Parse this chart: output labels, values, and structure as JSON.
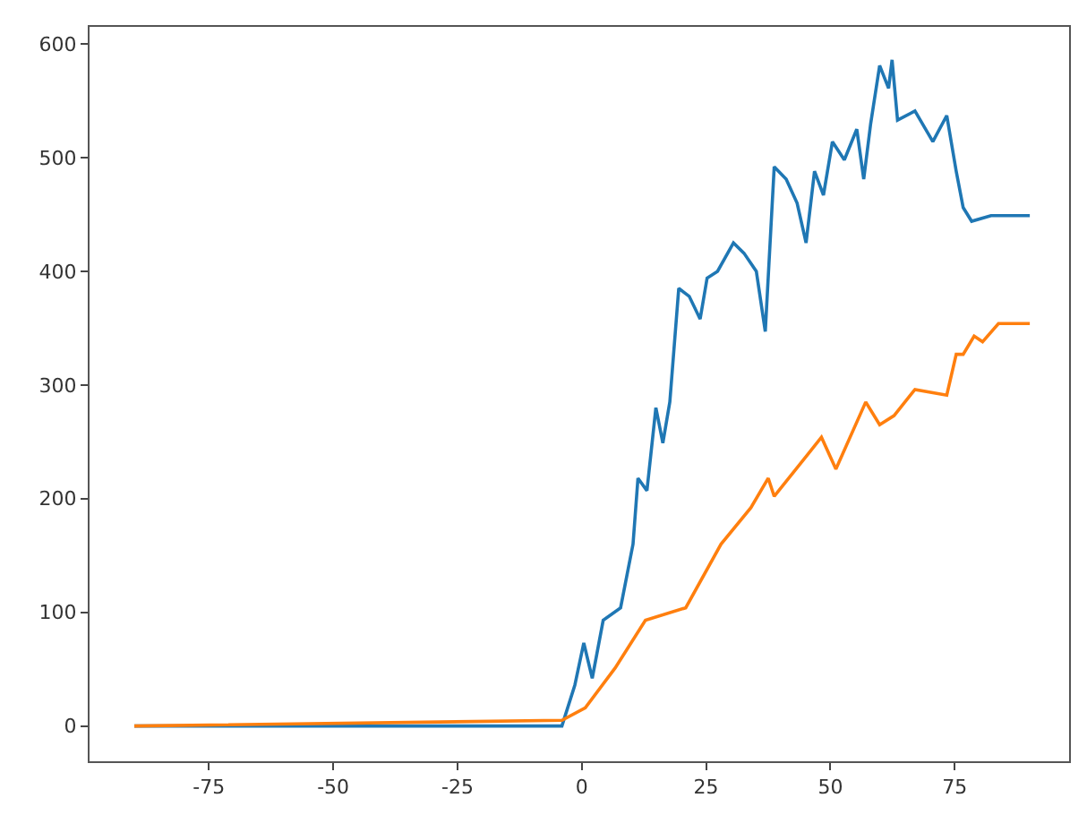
{
  "chart_data": {
    "type": "line",
    "xlim": [
      -99,
      98
    ],
    "ylim": [
      -31,
      615
    ],
    "xticks": [
      -75,
      -50,
      -25,
      0,
      25,
      50,
      75
    ],
    "yticks": [
      0,
      100,
      200,
      300,
      400,
      500,
      600
    ],
    "marker": "none",
    "line_style": "solid",
    "series": [
      {
        "color": "#1f77b4",
        "x": [
          -90,
          -4,
          -1.4,
          0.4,
          2.1,
          4.3,
          7.8,
          10.3,
          11.3,
          13.1,
          14.9,
          16.3,
          17.7,
          19.5,
          21.6,
          23.8,
          25.2,
          27.3,
          30.5,
          32.6,
          35.1,
          36.9,
          38.7,
          41.1,
          43.3,
          45.1,
          46.8,
          48.6,
          50.4,
          52.8,
          55.3,
          56.7,
          58.1,
          59.9,
          61.7,
          62.4,
          63.5,
          67.0,
          70.6,
          73.4,
          75.3,
          76.7,
          78.4,
          82.3,
          90.1
        ],
        "values": [
          0,
          0,
          36,
          73,
          42,
          93,
          104,
          160,
          218,
          207,
          280,
          249,
          285,
          385,
          378,
          358,
          394,
          400,
          425,
          416,
          400,
          347,
          492,
          481,
          460,
          425,
          488,
          467,
          514,
          498,
          525,
          481,
          530,
          581,
          561,
          586,
          533,
          541,
          514,
          537,
          488,
          456,
          444,
          449,
          449
        ]
      },
      {
        "color": "#ff7f0e",
        "x": [
          -90,
          -4,
          0.7,
          6.7,
          12.8,
          20.9,
          28,
          34,
          37.5,
          38.7,
          48.2,
          51.1,
          57.1,
          59.9,
          62.8,
          67,
          73.4,
          75.3,
          76.7,
          78.9,
          80.6,
          83.8,
          90.1
        ],
        "values": [
          0,
          5,
          16,
          51,
          93,
          104,
          160,
          192,
          218,
          202,
          254,
          226,
          285,
          265,
          273,
          296,
          291,
          327,
          327,
          343,
          338,
          354,
          354
        ]
      }
    ]
  }
}
